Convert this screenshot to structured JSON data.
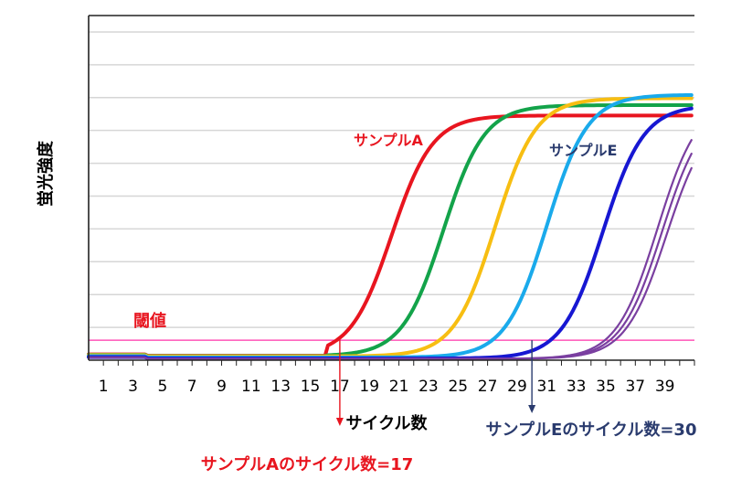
{
  "chart_data": {
    "type": "line",
    "xlabel": "サイクル数",
    "ylabel": "蛍光強度",
    "x_ticks": [
      "1",
      "3",
      "5",
      "7",
      "9",
      "11",
      "13",
      "15",
      "17",
      "19",
      "21",
      "23",
      "25",
      "27",
      "29",
      "31",
      "33",
      "35",
      "37",
      "39"
    ],
    "xlim": [
      0,
      41
    ],
    "ylim": [
      0,
      1
    ],
    "grid": true,
    "colors": {
      "red": "#e8151f",
      "green": "#13a34a",
      "yellow": "#f7be12",
      "cyan": "#1aaaeb",
      "blue": "#1717d2",
      "purple": "#7a3fa0",
      "threshold": "#ff33aa",
      "threshold_label": "#e8151f",
      "annotation_blue": "#2a3b6e"
    },
    "series": [
      {
        "key": "red",
        "midpoint": 20.5,
        "plateau": 0.71,
        "start": 0.013
      },
      {
        "key": "green",
        "midpoint": 24.0,
        "plateau": 0.74,
        "start": 0.012
      },
      {
        "key": "yellow",
        "midpoint": 27.5,
        "plateau": 0.76,
        "start": 0.011
      },
      {
        "key": "cyan",
        "midpoint": 31.0,
        "plateau": 0.77,
        "start": 0.008
      },
      {
        "key": "blue",
        "midpoint": 34.8,
        "plateau": 0.74,
        "start": 0.005
      },
      {
        "key": "purple",
        "midpoint": 38.5,
        "plateau": 0.76,
        "start": 0.004
      },
      {
        "key": "purple",
        "midpoint": 38.8,
        "plateau": 0.74,
        "start": 0.004
      },
      {
        "key": "purple",
        "midpoint": 39.1,
        "plateau": 0.72,
        "start": 0.004
      }
    ],
    "threshold": {
      "label": "閾値",
      "value": 0.058
    },
    "annotations": [
      {
        "text": "サンプルA",
        "color_key": "red"
      },
      {
        "text": "サンプルE",
        "color_key": "annotation_blue"
      }
    ],
    "markers": [
      {
        "cycle": 17,
        "text": "サンプルAのサイクル数=17",
        "color_key": "red"
      },
      {
        "cycle": 30,
        "text": "サンプルEのサイクル数=30",
        "color_key": "annotation_blue"
      }
    ]
  }
}
